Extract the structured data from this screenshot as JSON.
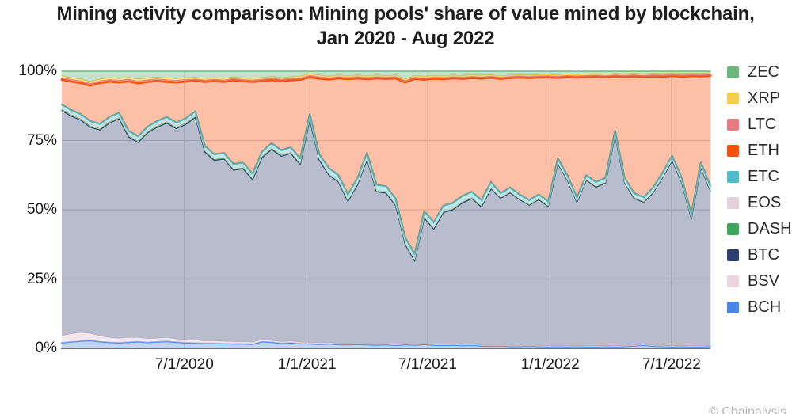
{
  "title": {
    "line1": "Mining activity comparison: Mining pools' share of value mined by blockchain,",
    "line2": "Jan 2020 - Aug 2022"
  },
  "attribution": "© Chainalysis",
  "legend": [
    {
      "label": "ZEC",
      "color": "#6eb57e"
    },
    {
      "label": "XRP",
      "color": "#f5cd50"
    },
    {
      "label": "LTC",
      "color": "#e77c80"
    },
    {
      "label": "ETH",
      "color": "#f4510b"
    },
    {
      "label": "ETC",
      "color": "#4cbec7"
    },
    {
      "label": "EOS",
      "color": "#e4d2db"
    },
    {
      "label": "DASH",
      "color": "#3ea75b"
    },
    {
      "label": "BTC",
      "color": "#2c3f6d"
    },
    {
      "label": "BSV",
      "color": "#e9d6df"
    },
    {
      "label": "BCH",
      "color": "#4a86e8"
    }
  ],
  "chart_data": {
    "type": "area",
    "stacked": true,
    "percent_stacked": true,
    "title": "Mining activity comparison: Mining pools' share of value mined by blockchain, Jan 2020 - Aug 2022",
    "x_description": "Time, weekly-style samples from Jan 2020 to Aug 2022",
    "x_start_label": "Jan 2020",
    "x_end_label": "Aug 2022",
    "legend_position": "right",
    "grid": true,
    "x_axis": {
      "ticks": [
        {
          "label": "7/1/2020",
          "pos": 0.189
        },
        {
          "label": "1/1/2021",
          "pos": 0.378
        },
        {
          "label": "7/1/2021",
          "pos": 0.564
        },
        {
          "label": "1/1/2022",
          "pos": 0.753
        },
        {
          "label": "7/1/2022",
          "pos": 0.94
        }
      ]
    },
    "y_axis": {
      "ticks": [
        {
          "label": "0%",
          "value": 0
        },
        {
          "label": "25%",
          "value": 25
        },
        {
          "label": "50%",
          "value": 50
        },
        {
          "label": "75%",
          "value": 75
        },
        {
          "label": "100%",
          "value": 100
        }
      ],
      "min": 0,
      "max": 100,
      "gridlines": [
        25,
        50,
        75
      ]
    },
    "series_bottom_to_top": [
      {
        "name": "BCH",
        "color": "#4a86e8",
        "fill_opacity": 0.35,
        "stroke_width": 1.8,
        "values": [
          2.0,
          2.3,
          2.6,
          2.8,
          2.4,
          2.1,
          2.0,
          2.2,
          2.4,
          2.1,
          2.3,
          2.5,
          2.2,
          2.0,
          1.9,
          1.8,
          1.8,
          1.7,
          1.6,
          1.6,
          1.5,
          2.4,
          2.2,
          1.8,
          2.0,
          1.7,
          1.6,
          1.5,
          1.6,
          1.4,
          1.3,
          1.5,
          1.3,
          1.2,
          1.3,
          1.1,
          1.3,
          1.2,
          1.4,
          1.2,
          1.1,
          1.2,
          1.0,
          1.1,
          0.9,
          0.8,
          0.9,
          0.7,
          0.7,
          0.8,
          0.7,
          0.6,
          0.7,
          0.6,
          0.7,
          0.6,
          0.6,
          0.7,
          0.6,
          0.7,
          0.9,
          1.1,
          0.8,
          0.7,
          0.6,
          0.7,
          0.6,
          0.6,
          0.7
        ]
      },
      {
        "name": "BSV",
        "color": "#e9d6df",
        "fill_opacity": 0.6,
        "stroke_width": 1,
        "values": [
          2.6,
          2.9,
          3.1,
          2.6,
          2.1,
          1.8,
          1.6,
          1.7,
          1.5,
          1.4,
          1.3,
          1.4,
          1.2,
          1.1,
          1.0,
          0.9,
          0.9,
          0.8,
          0.8,
          0.7,
          0.7,
          0.7,
          0.6,
          0.6,
          0.6,
          0.5,
          0.5,
          0.5,
          0.5,
          0.4,
          0.4,
          0.4,
          0.4,
          0.4,
          0.3,
          0.3,
          0.3,
          0.3,
          0.3,
          0.3,
          0.3,
          0.3,
          0.3,
          0.3,
          0.3,
          0.3,
          0.25,
          0.25,
          0.2,
          0.2,
          0.2,
          0.2,
          0.2,
          0.2,
          0.2,
          0.2,
          0.2,
          0.2,
          0.2,
          0.2,
          0.2,
          0.2,
          0.2,
          0.2,
          0.2,
          0.2,
          0.2,
          0.2,
          0.2
        ]
      },
      {
        "name": "BTC",
        "color": "#2c3f6d",
        "fill_opacity": 0.34,
        "stroke_width": 1.3,
        "values": [
          81.2,
          78.6,
          76.6,
          74.4,
          74.3,
          77.4,
          79.2,
          72.4,
          70.4,
          74.3,
          76.2,
          77.4,
          75.9,
          77.7,
          80.4,
          68.1,
          65.1,
          65.8,
          61.9,
          62.5,
          58.6,
          65.7,
          69.0,
          66.9,
          67.7,
          64.1,
          80.2,
          65.8,
          60.4,
          58.2,
          51.3,
          57.1,
          66.3,
          54.9,
          54.4,
          50.1,
          35.9,
          30.0,
          45.3,
          41.5,
          47.6,
          48.5,
          51.2,
          52.6,
          49.8,
          56.4,
          53.0,
          55.2,
          52.75,
          50.65,
          52.75,
          50.35,
          65.75,
          59.85,
          51.75,
          59.85,
          57.35,
          58.75,
          75.85,
          58.75,
          53.05,
          51.35,
          55.15,
          60.75,
          66.85,
          58.75,
          45.85,
          64.35,
          55.95
        ]
      },
      {
        "name": "DASH",
        "color": "#3ea75b",
        "fill_opacity": 0.35,
        "stroke_width": 0.8,
        "values": [
          0.5,
          0.5,
          0.5,
          0.5,
          0.5,
          0.5,
          0.5,
          0.5,
          0.5,
          0.5,
          0.5,
          0.5,
          0.5,
          0.5,
          0.4,
          0.4,
          0.4,
          0.4,
          0.4,
          0.4,
          0.4,
          0.4,
          0.4,
          0.4,
          0.4,
          0.4,
          0.4,
          0.4,
          0.3,
          0.3,
          0.3,
          0.3,
          0.3,
          0.3,
          0.3,
          0.3,
          0.3,
          0.3,
          0.3,
          0.3,
          0.3,
          0.3,
          0.3,
          0.3,
          0.3,
          0.3,
          0.2,
          0.2,
          0.2,
          0.2,
          0.2,
          0.2,
          0.2,
          0.2,
          0.2,
          0.2,
          0.2,
          0.2,
          0.2,
          0.2,
          0.2,
          0.2,
          0.2,
          0.2,
          0.2,
          0.2,
          0.2,
          0.2,
          0.2
        ]
      },
      {
        "name": "EOS",
        "color": "#e4d2db",
        "fill_opacity": 0.6,
        "stroke_width": 0.8,
        "values": [
          0.5,
          0.5,
          0.5,
          0.5,
          0.5,
          0.5,
          0.5,
          0.5,
          0.5,
          0.5,
          0.5,
          0.5,
          0.5,
          0.5,
          0.4,
          0.4,
          0.4,
          0.4,
          0.4,
          0.4,
          0.4,
          0.4,
          0.4,
          0.4,
          0.4,
          0.4,
          0.4,
          0.4,
          0.3,
          0.3,
          0.3,
          0.3,
          0.3,
          0.3,
          0.3,
          0.3,
          0.3,
          0.3,
          0.3,
          0.3,
          0.3,
          0.3,
          0.3,
          0.3,
          0.3,
          0.3,
          0.25,
          0.25,
          0.25,
          0.25,
          0.25,
          0.25,
          0.25,
          0.25,
          0.25,
          0.25,
          0.25,
          0.25,
          0.25,
          0.25,
          0.25,
          0.25,
          0.25,
          0.25,
          0.25,
          0.25,
          0.25,
          0.25,
          0.25
        ]
      },
      {
        "name": "ETC",
        "color": "#4cbec7",
        "fill_opacity": 0.35,
        "stroke_width": 2.4,
        "values": [
          1.2,
          1.2,
          1.2,
          1.2,
          1.2,
          1.2,
          1.2,
          1.2,
          1.2,
          1.2,
          1.2,
          1.2,
          1.2,
          1.2,
          1.4,
          1.4,
          1.4,
          1.4,
          1.4,
          1.4,
          1.4,
          1.4,
          1.4,
          1.4,
          1.4,
          1.4,
          1.4,
          1.4,
          1.9,
          1.9,
          1.9,
          1.9,
          1.9,
          1.9,
          1.9,
          1.9,
          1.9,
          1.9,
          1.9,
          1.9,
          1.9,
          1.9,
          1.9,
          1.9,
          1.9,
          1.9,
          1.4,
          1.4,
          1.4,
          1.4,
          1.4,
          1.4,
          1.4,
          1.4,
          1.4,
          1.4,
          1.4,
          1.4,
          1.4,
          1.4,
          1.4,
          1.4,
          1.4,
          1.4,
          1.4,
          1.4,
          1.4,
          1.4,
          1.4
        ]
      },
      {
        "name": "ETH",
        "color": "#f4510b",
        "fill_opacity": 0.36,
        "stroke_width": 3,
        "values": [
          9.0,
          10.3,
          11.3,
          12.9,
          14.8,
          12.8,
          11.0,
          17.9,
          19.2,
          16.2,
          14.5,
          12.7,
          14.5,
          13.3,
          11.1,
          23.2,
          26.5,
          25.7,
          30.3,
          29.4,
          33.2,
          25.5,
          22.9,
          25.0,
          24.3,
          28.5,
          13.4,
          27.4,
          32.1,
          35.0,
          41.7,
          36.0,
          26.7,
          38.5,
          38.8,
          43.5,
          56.0,
          63.3,
          47.5,
          51.9,
          45.7,
          45.0,
          42.3,
          41.1,
          43.9,
          37.7,
          41.3,
          39.6,
          42.3,
          44.1,
          42.3,
          44.9,
          29.2,
          35.5,
          43.3,
          35.5,
          38.1,
          36.4,
          19.7,
          36.5,
          42.2,
          43.5,
          40.2,
          34.6,
          28.8,
          36.6,
          49.8,
          31.2,
          39.9
        ]
      },
      {
        "name": "LTC",
        "color": "#e77c80",
        "fill_opacity": 0.4,
        "stroke_width": 1.2,
        "values": [
          0.7,
          0.7,
          0.7,
          0.7,
          0.7,
          0.7,
          0.7,
          0.7,
          0.7,
          0.7,
          0.7,
          0.7,
          0.7,
          0.7,
          0.6,
          0.6,
          0.6,
          0.6,
          0.6,
          0.6,
          0.6,
          0.6,
          0.6,
          0.6,
          0.6,
          0.6,
          0.6,
          0.6,
          0.55,
          0.55,
          0.55,
          0.55,
          0.55,
          0.55,
          0.55,
          0.55,
          0.55,
          0.55,
          0.55,
          0.55,
          0.55,
          0.55,
          0.55,
          0.55,
          0.55,
          0.55,
          0.5,
          0.5,
          0.5,
          0.5,
          0.5,
          0.5,
          0.5,
          0.5,
          0.5,
          0.5,
          0.5,
          0.5,
          0.5,
          0.5,
          0.5,
          0.5,
          0.5,
          0.5,
          0.5,
          0.5,
          0.5,
          0.5,
          0.5
        ]
      },
      {
        "name": "XRP",
        "color": "#f5cd50",
        "fill_opacity": 0.45,
        "stroke_width": 1.5,
        "values": [
          0.65,
          0.65,
          0.65,
          0.65,
          0.65,
          0.65,
          0.65,
          0.65,
          0.65,
          0.65,
          0.65,
          0.65,
          0.65,
          0.65,
          0.55,
          0.55,
          0.55,
          0.55,
          0.55,
          0.55,
          0.55,
          0.55,
          0.55,
          0.55,
          0.55,
          0.55,
          0.55,
          0.55,
          0.5,
          0.5,
          0.5,
          0.5,
          0.5,
          0.5,
          0.5,
          0.5,
          0.5,
          0.5,
          0.5,
          0.5,
          0.5,
          0.5,
          0.5,
          0.5,
          0.5,
          0.5,
          0.45,
          0.45,
          0.45,
          0.45,
          0.45,
          0.45,
          0.45,
          0.45,
          0.45,
          0.45,
          0.45,
          0.45,
          0.45,
          0.45,
          0.45,
          0.45,
          0.45,
          0.45,
          0.45,
          0.45,
          0.45,
          0.45,
          0.45
        ]
      },
      {
        "name": "ZEC",
        "color": "#6eb57e",
        "fill_opacity": 0.4,
        "stroke_width": 1.5,
        "values": [
          1.65,
          2.35,
          2.85,
          3.75,
          2.85,
          2.35,
          2.65,
          2.25,
          2.95,
          2.45,
          2.15,
          2.45,
          2.65,
          2.35,
          2.25,
          2.65,
          2.35,
          2.65,
          2.05,
          2.45,
          2.65,
          2.35,
          1.95,
          2.35,
          2.05,
          1.85,
          0.95,
          1.45,
          1.85,
          1.45,
          1.75,
          1.45,
          1.75,
          1.45,
          1.65,
          1.45,
          2.95,
          1.65,
          1.95,
          1.55,
          1.75,
          1.45,
          1.65,
          1.35,
          1.55,
          1.25,
          1.75,
          1.45,
          1.25,
          1.45,
          1.25,
          1.15,
          1.35,
          1.05,
          1.25,
          1.05,
          0.95,
          1.15,
          0.85,
          1.05,
          0.85,
          1.05,
          0.85,
          0.95,
          0.75,
          0.95,
          0.75,
          0.85,
          0.65
        ]
      }
    ]
  }
}
